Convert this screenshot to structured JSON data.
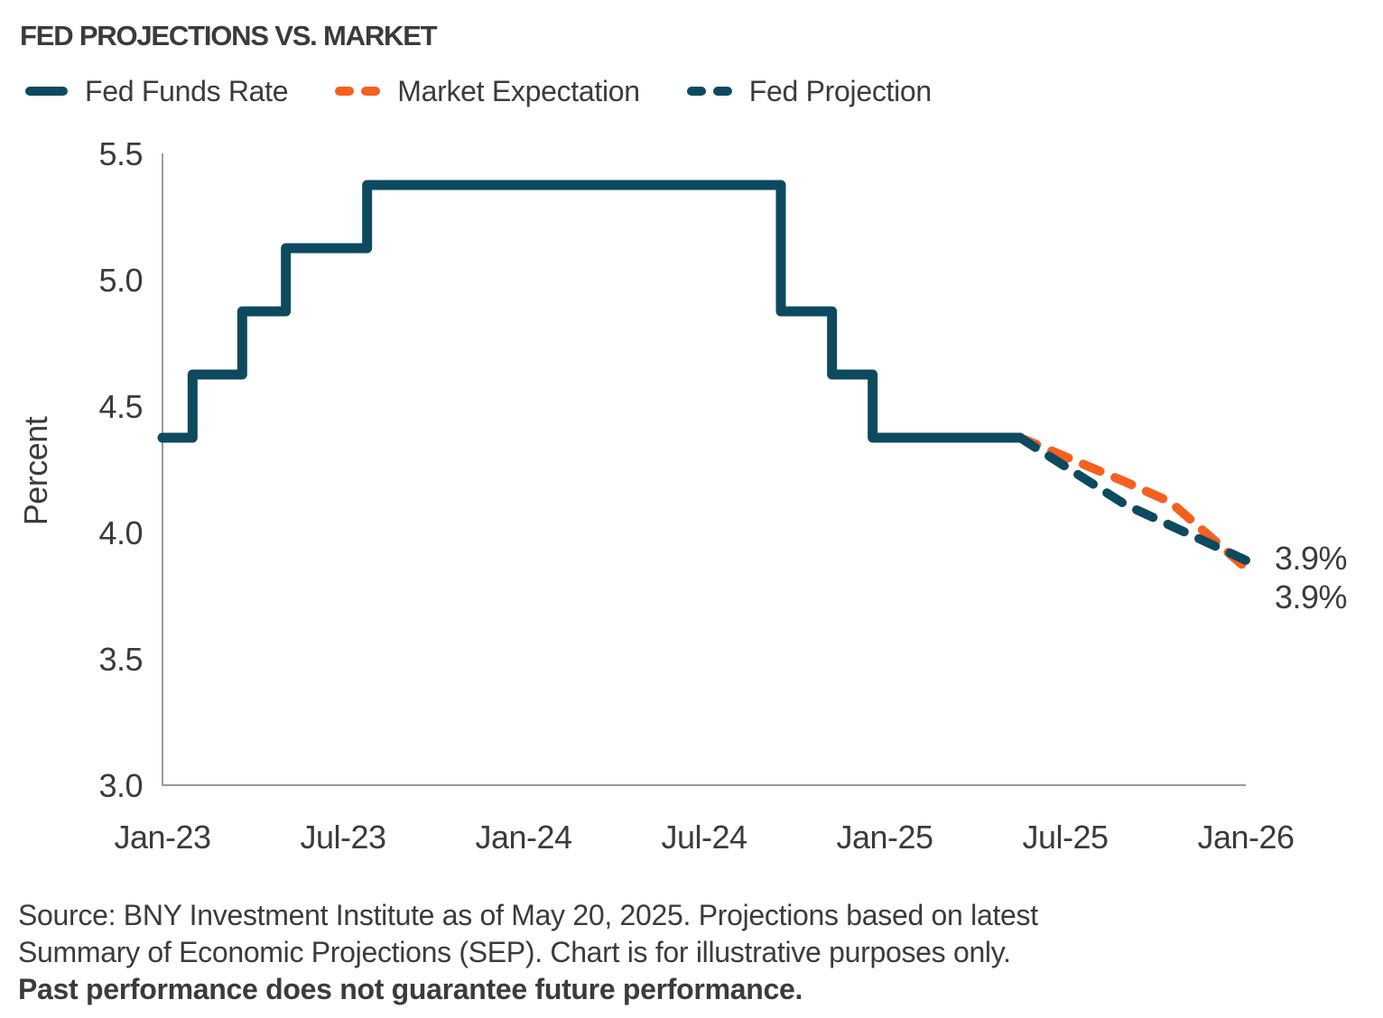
{
  "title": "FED PROJECTIONS VS. MARKET",
  "colors": {
    "teal": "#0D4A5F",
    "orange": "#F4611E",
    "axis_gray": "#9B9B9B",
    "text_dark": "#3B3B3B"
  },
  "legend": [
    {
      "label": "Fed Funds Rate",
      "style": "solid",
      "color": "teal"
    },
    {
      "label": "Market Expectation",
      "style": "dashed",
      "color": "orange"
    },
    {
      "label": "Fed Projection",
      "style": "dashed",
      "color": "teal"
    }
  ],
  "chart_data": {
    "type": "line",
    "title": "FED PROJECTIONS VS. MARKET",
    "xlabel": "",
    "ylabel": "Percent",
    "ylim": [
      3.0,
      5.5
    ],
    "xlim_months_from_jan23": [
      0,
      36
    ],
    "grid": false,
    "legend_position": "top",
    "x_ticks": [
      {
        "label": "Jan-23",
        "t": 0
      },
      {
        "label": "Jul-23",
        "t": 6
      },
      {
        "label": "Jan-24",
        "t": 12
      },
      {
        "label": "Jul-24",
        "t": 18
      },
      {
        "label": "Jan-25",
        "t": 24
      },
      {
        "label": "Jul-25",
        "t": 30
      },
      {
        "label": "Jan-26",
        "t": 36
      }
    ],
    "y_ticks": [
      {
        "label": "5.5",
        "value": 5.5
      },
      {
        "label": "5.0",
        "value": 5.0
      },
      {
        "label": "4.5",
        "value": 4.5
      },
      {
        "label": "4.0",
        "value": 4.0
      },
      {
        "label": "3.5",
        "value": 3.5
      },
      {
        "label": "3.0",
        "value": 3.0
      }
    ],
    "series": [
      {
        "name": "Fed Funds Rate",
        "type": "step",
        "color": "teal",
        "points": [
          {
            "t": 0.0,
            "v": 4.375
          },
          {
            "t": 1.0,
            "v": 4.625
          },
          {
            "t": 2.65,
            "v": 4.875
          },
          {
            "t": 4.1,
            "v": 5.125
          },
          {
            "t": 6.8,
            "v": 5.375
          },
          {
            "t": 20.55,
            "v": 4.875
          },
          {
            "t": 22.25,
            "v": 4.625
          },
          {
            "t": 23.6,
            "v": 4.375
          },
          {
            "t": 28.5,
            "v": 4.375
          }
        ]
      },
      {
        "name": "Market Expectation",
        "type": "dashed",
        "color": "orange",
        "points": [
          {
            "t": 28.5,
            "v": 4.375
          },
          {
            "t": 32.0,
            "v": 4.2
          },
          {
            "t": 33.5,
            "v": 4.12
          },
          {
            "t": 36.0,
            "v": 3.86
          }
        ]
      },
      {
        "name": "Fed Projection",
        "type": "dashed",
        "color": "teal",
        "points": [
          {
            "t": 28.5,
            "v": 4.375
          },
          {
            "t": 32.0,
            "v": 4.11
          },
          {
            "t": 36.0,
            "v": 3.89
          }
        ]
      }
    ],
    "end_labels": [
      "3.9%",
      "3.9%"
    ]
  },
  "source": {
    "line1": "Source: BNY Investment Institute as of May 20, 2025. Projections based on latest",
    "line2": "Summary of Economic Projections (SEP). Chart is for illustrative purposes only.",
    "line3_bold": "Past performance does not guarantee future performance."
  }
}
